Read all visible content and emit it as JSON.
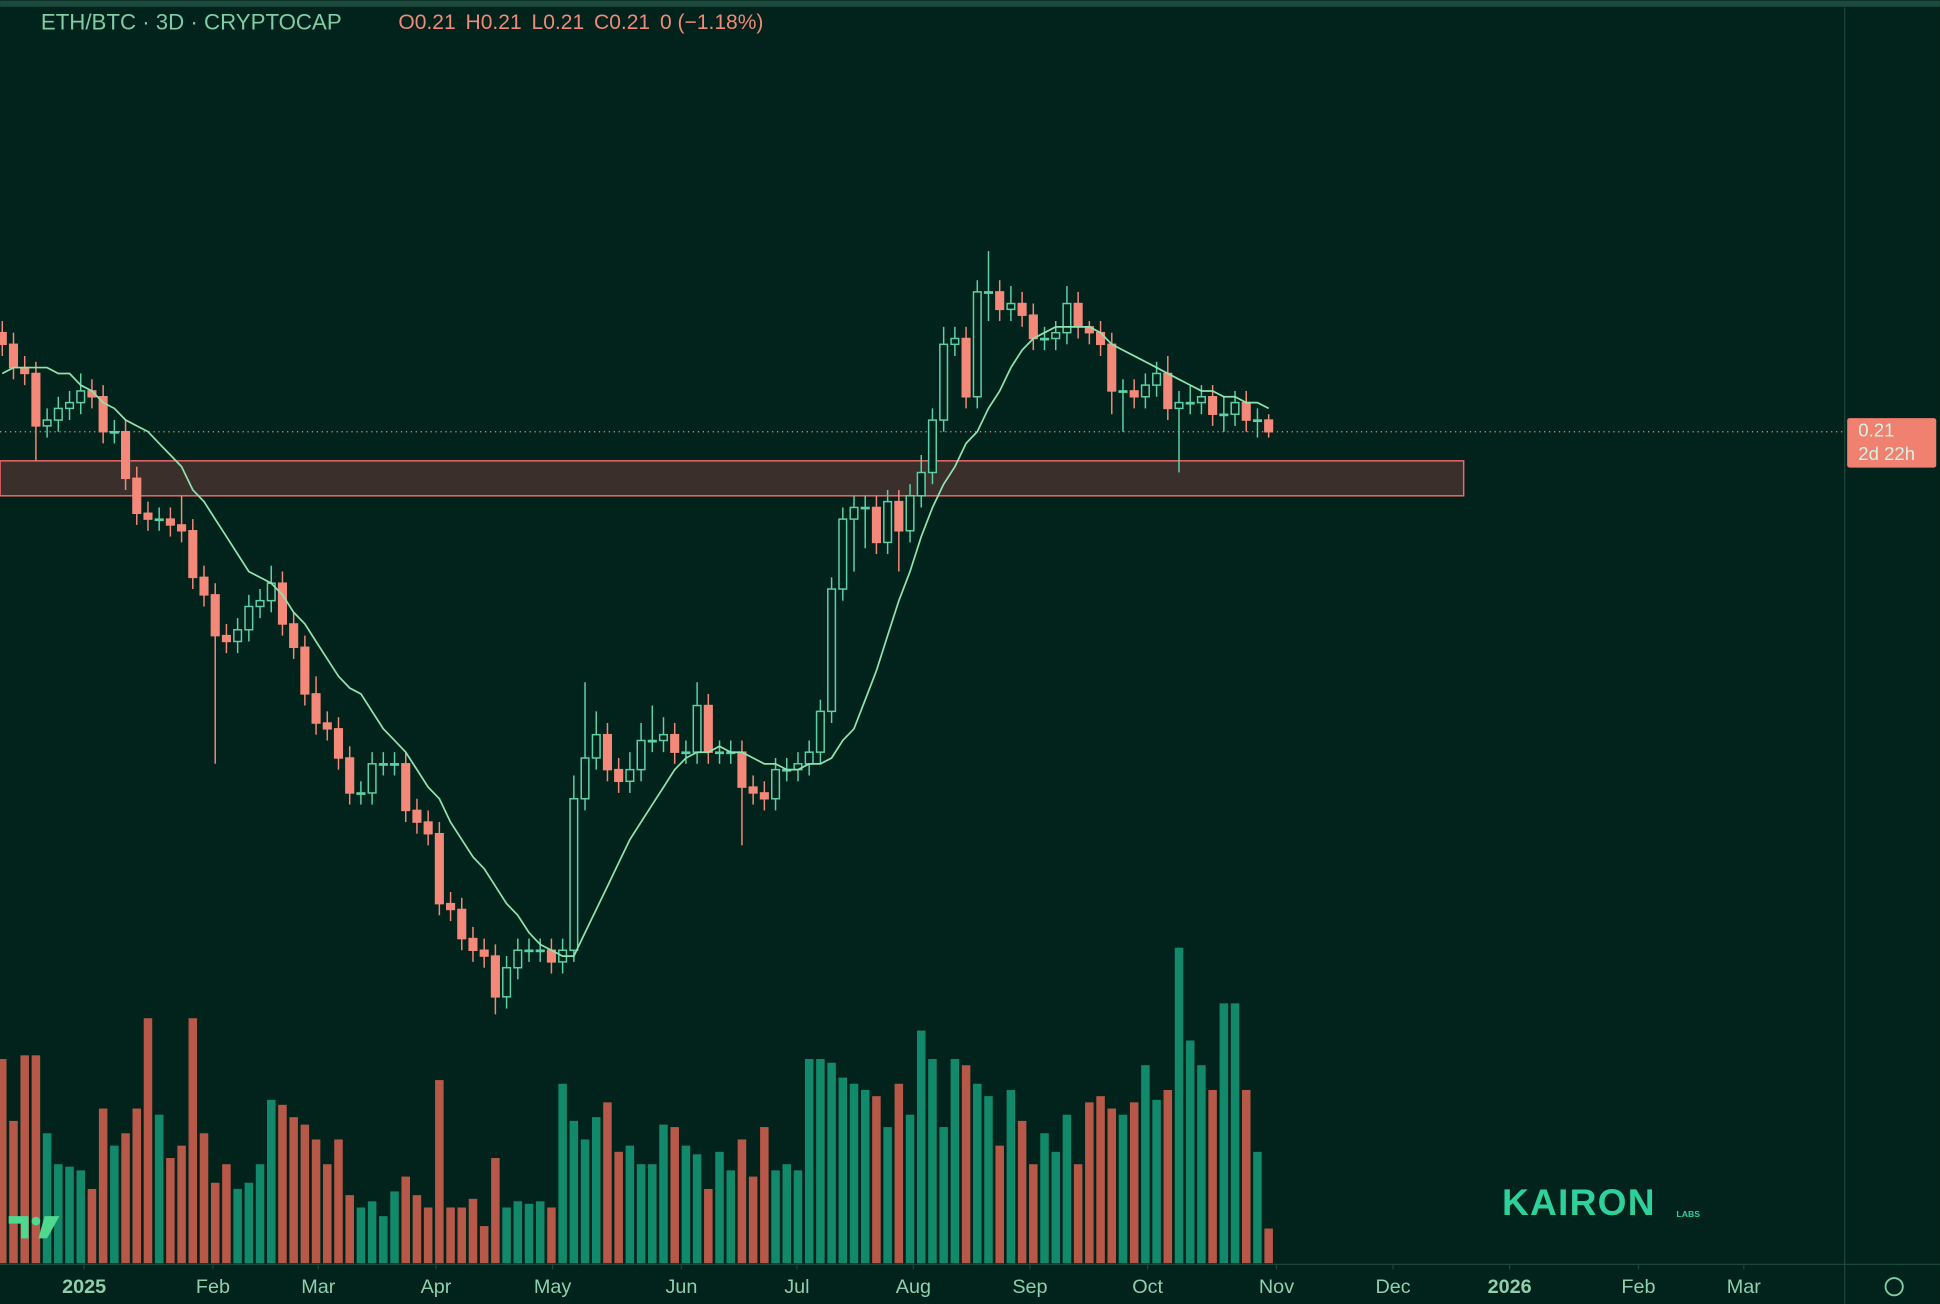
{
  "chart_data": {
    "type": "candlestick",
    "symbol": "ETH/BTC · 3D · CRYPTOCAP",
    "ohlc_legend": [
      "O0.21",
      "H0.21",
      "L0.21",
      "C0.21",
      "0 (−1.18%)"
    ],
    "open": [
      0.227,
      0.225,
      0.221,
      0.22,
      0.211,
      0.212,
      0.214,
      0.215,
      0.217,
      0.216,
      0.21,
      0.21,
      0.202,
      0.196,
      0.195,
      0.195,
      0.194,
      0.193,
      0.185,
      0.182,
      0.175,
      0.174,
      0.176,
      0.18,
      0.181,
      0.184,
      0.177,
      0.173,
      0.165,
      0.16,
      0.159,
      0.154,
      0.148,
      0.148,
      0.153,
      0.153,
      0.153,
      0.145,
      0.143,
      0.141,
      0.129,
      0.128,
      0.123,
      0.121,
      0.12,
      0.113,
      0.118,
      0.121,
      0.121,
      0.121,
      0.119,
      0.121,
      0.147,
      0.154,
      0.158,
      0.152,
      0.15,
      0.152,
      0.157,
      0.157,
      0.158,
      0.155,
      0.155,
      0.163,
      0.155,
      0.155,
      0.155,
      0.149,
      0.148,
      0.147,
      0.152,
      0.152,
      0.153,
      0.155,
      0.162,
      0.183,
      0.195,
      0.197,
      0.197,
      0.191,
      0.198,
      0.193,
      0.199,
      0.203,
      0.212,
      0.225,
      0.226,
      0.216,
      0.234,
      0.234,
      0.231,
      0.232,
      0.23,
      0.226,
      0.226,
      0.227,
      0.232,
      0.228,
      0.227,
      0.225,
      0.217,
      0.217,
      0.216,
      0.218,
      0.22,
      0.214,
      0.215,
      0.215,
      0.216,
      0.213,
      0.213,
      0.215,
      0.212,
      0.212
    ],
    "high": [
      0.229,
      0.227,
      0.223,
      0.222,
      0.214,
      0.216,
      0.217,
      0.22,
      0.219,
      0.218,
      0.212,
      0.212,
      0.204,
      0.198,
      0.197,
      0.197,
      0.199,
      0.195,
      0.187,
      0.184,
      0.177,
      0.178,
      0.182,
      0.183,
      0.187,
      0.186,
      0.179,
      0.175,
      0.168,
      0.162,
      0.161,
      0.156,
      0.15,
      0.155,
      0.155,
      0.155,
      0.155,
      0.147,
      0.145,
      0.143,
      0.131,
      0.13,
      0.125,
      0.123,
      0.122,
      0.12,
      0.123,
      0.123,
      0.123,
      0.123,
      0.123,
      0.151,
      0.167,
      0.162,
      0.16,
      0.154,
      0.155,
      0.16,
      0.163,
      0.161,
      0.16,
      0.157,
      0.167,
      0.165,
      0.157,
      0.157,
      0.157,
      0.151,
      0.15,
      0.154,
      0.154,
      0.155,
      0.157,
      0.164,
      0.185,
      0.197,
      0.199,
      0.199,
      0.199,
      0.2,
      0.2,
      0.201,
      0.206,
      0.214,
      0.228,
      0.228,
      0.228,
      0.236,
      0.241,
      0.236,
      0.235,
      0.234,
      0.232,
      0.228,
      0.229,
      0.235,
      0.234,
      0.229,
      0.229,
      0.227,
      0.219,
      0.219,
      0.22,
      0.222,
      0.223,
      0.217,
      0.218,
      0.218,
      0.218,
      0.216,
      0.217,
      0.217,
      0.214,
      0.213
    ],
    "low": [
      0.223,
      0.219,
      0.218,
      0.205,
      0.209,
      0.21,
      0.212,
      0.213,
      0.214,
      0.208,
      0.208,
      0.2,
      0.194,
      0.193,
      0.193,
      0.192,
      0.191,
      0.183,
      0.18,
      0.153,
      0.172,
      0.172,
      0.174,
      0.178,
      0.179,
      0.175,
      0.171,
      0.163,
      0.158,
      0.157,
      0.152,
      0.146,
      0.146,
      0.146,
      0.151,
      0.151,
      0.143,
      0.141,
      0.139,
      0.127,
      0.126,
      0.121,
      0.119,
      0.118,
      0.11,
      0.111,
      0.116,
      0.119,
      0.119,
      0.117,
      0.117,
      0.119,
      0.145,
      0.152,
      0.15,
      0.148,
      0.148,
      0.15,
      0.155,
      0.155,
      0.153,
      0.153,
      0.153,
      0.153,
      0.153,
      0.153,
      0.139,
      0.146,
      0.145,
      0.145,
      0.15,
      0.15,
      0.151,
      0.153,
      0.16,
      0.181,
      0.186,
      0.19,
      0.189,
      0.189,
      0.186,
      0.191,
      0.197,
      0.201,
      0.21,
      0.223,
      0.214,
      0.214,
      0.229,
      0.229,
      0.229,
      0.228,
      0.224,
      0.224,
      0.224,
      0.225,
      0.226,
      0.225,
      0.223,
      0.213,
      0.21,
      0.214,
      0.214,
      0.216,
      0.212,
      0.203,
      0.213,
      0.213,
      0.211,
      0.21,
      0.211,
      0.21,
      0.209,
      0.209
    ],
    "close": [
      0.225,
      0.221,
      0.22,
      0.211,
      0.212,
      0.214,
      0.215,
      0.217,
      0.216,
      0.21,
      0.21,
      0.202,
      0.196,
      0.195,
      0.195,
      0.194,
      0.193,
      0.185,
      0.182,
      0.175,
      0.174,
      0.176,
      0.18,
      0.181,
      0.184,
      0.177,
      0.173,
      0.165,
      0.16,
      0.159,
      0.154,
      0.148,
      0.148,
      0.153,
      0.153,
      0.153,
      0.145,
      0.143,
      0.141,
      0.129,
      0.128,
      0.123,
      0.121,
      0.12,
      0.113,
      0.118,
      0.121,
      0.121,
      0.121,
      0.119,
      0.121,
      0.147,
      0.154,
      0.158,
      0.152,
      0.15,
      0.152,
      0.157,
      0.157,
      0.158,
      0.155,
      0.155,
      0.163,
      0.155,
      0.155,
      0.155,
      0.149,
      0.148,
      0.147,
      0.152,
      0.152,
      0.153,
      0.155,
      0.162,
      0.183,
      0.195,
      0.197,
      0.197,
      0.191,
      0.198,
      0.193,
      0.199,
      0.203,
      0.212,
      0.225,
      0.226,
      0.216,
      0.234,
      0.234,
      0.231,
      0.232,
      0.23,
      0.226,
      0.226,
      0.227,
      0.232,
      0.228,
      0.227,
      0.225,
      0.217,
      0.217,
      0.216,
      0.218,
      0.22,
      0.214,
      0.215,
      0.215,
      0.216,
      0.213,
      0.213,
      0.215,
      0.212,
      0.212,
      0.21
    ],
    "ma": [
      0.22,
      0.221,
      0.221,
      0.221,
      0.221,
      0.22,
      0.22,
      0.218,
      0.217,
      0.215,
      0.214,
      0.212,
      0.211,
      0.21,
      0.208,
      0.206,
      0.204,
      0.2,
      0.198,
      0.195,
      0.192,
      0.189,
      0.186,
      0.185,
      0.184,
      0.182,
      0.179,
      0.177,
      0.174,
      0.171,
      0.168,
      0.166,
      0.165,
      0.162,
      0.159,
      0.157,
      0.155,
      0.152,
      0.149,
      0.147,
      0.143,
      0.14,
      0.137,
      0.135,
      0.132,
      0.129,
      0.127,
      0.124,
      0.122,
      0.121,
      0.12,
      0.12,
      0.124,
      0.128,
      0.132,
      0.136,
      0.14,
      0.143,
      0.146,
      0.149,
      0.152,
      0.154,
      0.155,
      0.155,
      0.156,
      0.155,
      0.155,
      0.154,
      0.153,
      0.153,
      0.152,
      0.152,
      0.153,
      0.153,
      0.154,
      0.157,
      0.159,
      0.164,
      0.169,
      0.175,
      0.181,
      0.186,
      0.192,
      0.197,
      0.201,
      0.204,
      0.208,
      0.21,
      0.214,
      0.217,
      0.221,
      0.224,
      0.226,
      0.227,
      0.228,
      0.228,
      0.228,
      0.228,
      0.227,
      0.225,
      0.224,
      0.223,
      0.222,
      0.221,
      0.22,
      0.219,
      0.218,
      0.217,
      0.217,
      0.216,
      0.216,
      0.215,
      0.215,
      0.214
    ],
    "volume": [
      165,
      115,
      168,
      168,
      105,
      80,
      78,
      75,
      60,
      125,
      95,
      105,
      125,
      198,
      120,
      85,
      95,
      198,
      105,
      65,
      80,
      60,
      65,
      80,
      132,
      128,
      118,
      112,
      100,
      80,
      100,
      55,
      45,
      50,
      38,
      58,
      70,
      55,
      45,
      148,
      45,
      45,
      52,
      30,
      85,
      45,
      50,
      48,
      50,
      45,
      145,
      115,
      100,
      118,
      130,
      90,
      95,
      80,
      80,
      112,
      110,
      95,
      88,
      60,
      90,
      75,
      100,
      70,
      110,
      75,
      80,
      75,
      165,
      165,
      162,
      150,
      145,
      140,
      135,
      110,
      145,
      120,
      188,
      165,
      110,
      165,
      160,
      145,
      135,
      95,
      140,
      115,
      80,
      105,
      90,
      120,
      80,
      130,
      135,
      125,
      120,
      130,
      160,
      132,
      140,
      255,
      180,
      160,
      140,
      210,
      210,
      140,
      90,
      28
    ],
    "ylim": [
      0.0675,
      0.2841
    ],
    "vlim": [
      0,
      255
    ],
    "xlim": [
      -0.2,
      164.4
    ],
    "xticks": [
      {
        "value": 7.3,
        "label": "2025"
      },
      {
        "value": 18.8,
        "label": "Feb"
      },
      {
        "value": 28.2,
        "label": "Mar"
      },
      {
        "value": 38.7,
        "label": "Apr"
      },
      {
        "value": 49.1,
        "label": "May"
      },
      {
        "value": 60.6,
        "label": "Jun"
      },
      {
        "value": 70.9,
        "label": "Jul"
      },
      {
        "value": 81.3,
        "label": "Aug"
      },
      {
        "value": 91.7,
        "label": "Sep"
      },
      {
        "value": 102.2,
        "label": "Oct"
      },
      {
        "value": 113.7,
        "label": "Nov"
      },
      {
        "value": 124.1,
        "label": "Dec"
      },
      {
        "value": 134.5,
        "label": "2026"
      },
      {
        "value": 146.0,
        "label": "Feb"
      },
      {
        "value": 155.4,
        "label": "Mar"
      }
    ],
    "last_price": {
      "value": 0.21,
      "label": "0.21",
      "countdown": "2d 22h"
    },
    "zone": {
      "low": 0.199,
      "high": 0.205,
      "x_end": 130.4
    },
    "up_color": "#5fd0a6",
    "down_color": "#f4897a",
    "up_volume_color": "#13896b",
    "down_volume_color": "#b75848",
    "ma_color": "#8fe3b0",
    "watermark": {
      "brand": "KAIRON",
      "sub": "LABS"
    }
  }
}
